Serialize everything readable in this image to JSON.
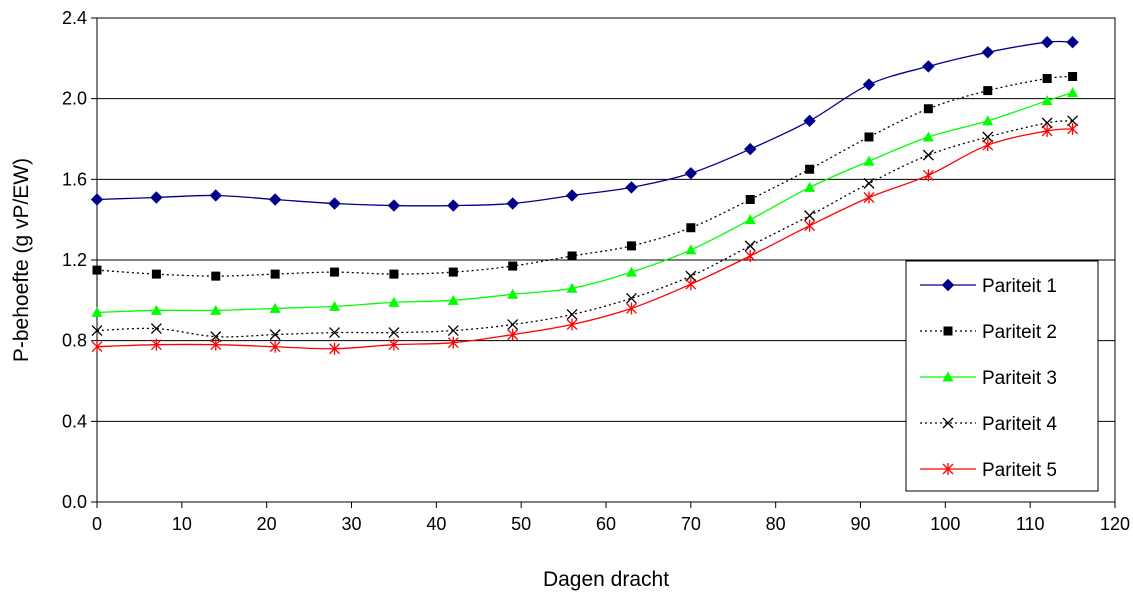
{
  "chart_data": {
    "type": "line",
    "xlabel": "Dagen dracht",
    "ylabel": "P-behoefte (g vP/EW)",
    "xlim": [
      0,
      120
    ],
    "ylim": [
      0.0,
      2.4
    ],
    "xticks": [
      "0",
      "10",
      "20",
      "30",
      "40",
      "50",
      "60",
      "70",
      "80",
      "90",
      "100",
      "110",
      "120"
    ],
    "yticks": [
      "0.0",
      "0.4",
      "0.8",
      "1.2",
      "1.6",
      "2.0",
      "2.4"
    ],
    "grid": "horizontal",
    "legend_position": "right",
    "x": [
      0,
      7,
      14,
      21,
      28,
      35,
      42,
      49,
      56,
      63,
      70,
      77,
      84,
      91,
      98,
      105,
      112,
      115
    ],
    "series": [
      {
        "name": "Pariteit 1",
        "color": "#00008B",
        "marker": "diamond",
        "dash": "solid",
        "values": [
          1.5,
          1.51,
          1.52,
          1.5,
          1.48,
          1.47,
          1.47,
          1.48,
          1.52,
          1.56,
          1.63,
          1.75,
          1.89,
          2.07,
          2.16,
          2.23,
          2.28,
          2.28
        ]
      },
      {
        "name": "Pariteit 2",
        "color": "#000000",
        "marker": "square",
        "dash": "dotted",
        "values": [
          1.15,
          1.13,
          1.12,
          1.13,
          1.14,
          1.13,
          1.14,
          1.17,
          1.22,
          1.27,
          1.36,
          1.5,
          1.65,
          1.81,
          1.95,
          2.04,
          2.1,
          2.11
        ]
      },
      {
        "name": "Pariteit 3",
        "color": "#00FF00",
        "marker": "triangle",
        "dash": "solid",
        "values": [
          0.94,
          0.95,
          0.95,
          0.96,
          0.97,
          0.99,
          1.0,
          1.03,
          1.06,
          1.14,
          1.25,
          1.4,
          1.56,
          1.69,
          1.81,
          1.89,
          1.99,
          2.03
        ]
      },
      {
        "name": "Pariteit 4",
        "color": "#000000",
        "marker": "x",
        "dash": "dotted",
        "values": [
          0.85,
          0.86,
          0.82,
          0.83,
          0.84,
          0.84,
          0.85,
          0.88,
          0.93,
          1.01,
          1.12,
          1.27,
          1.42,
          1.58,
          1.72,
          1.81,
          1.88,
          1.89
        ]
      },
      {
        "name": "Pariteit 5",
        "color": "#FF0000",
        "marker": "star",
        "dash": "solid",
        "values": [
          0.77,
          0.78,
          0.78,
          0.77,
          0.76,
          0.78,
          0.79,
          0.83,
          0.88,
          0.96,
          1.08,
          1.22,
          1.37,
          1.51,
          1.62,
          1.77,
          1.84,
          1.85
        ]
      }
    ]
  }
}
